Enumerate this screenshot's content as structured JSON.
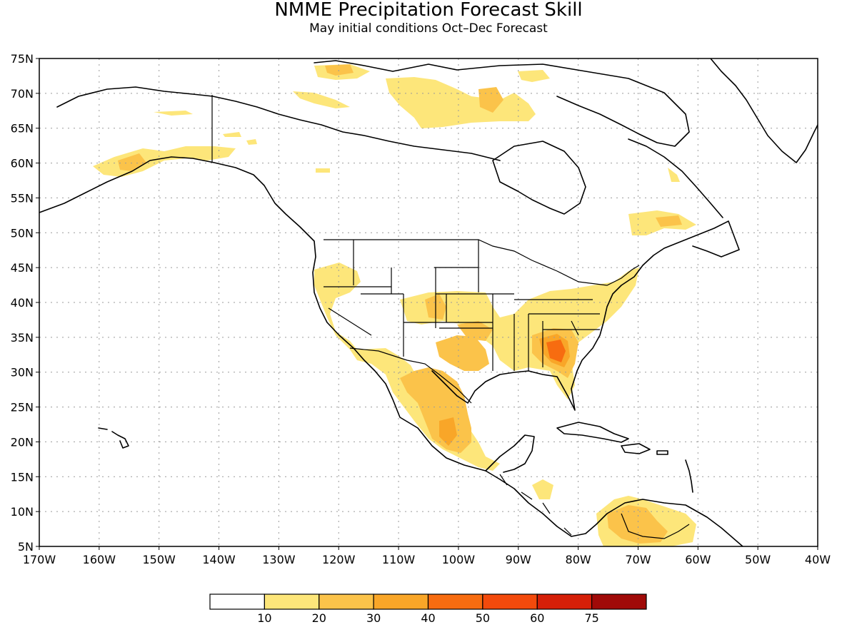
{
  "title": "NMME Precipitation Forecast Skill",
  "subtitle": "May initial conditions  Oct–Dec Forecast",
  "map": {
    "lon_range": [
      -170,
      -40
    ],
    "lat_range": [
      5,
      75
    ],
    "lat_ticks": [
      {
        "value": 75,
        "label": "75N"
      },
      {
        "value": 70,
        "label": "70N"
      },
      {
        "value": 65,
        "label": "65N"
      },
      {
        "value": 60,
        "label": "60N"
      },
      {
        "value": 55,
        "label": "55N"
      },
      {
        "value": 50,
        "label": "50N"
      },
      {
        "value": 45,
        "label": "45N"
      },
      {
        "value": 40,
        "label": "40N"
      },
      {
        "value": 35,
        "label": "35N"
      },
      {
        "value": 30,
        "label": "30N"
      },
      {
        "value": 25,
        "label": "25N"
      },
      {
        "value": 20,
        "label": "20N"
      },
      {
        "value": 15,
        "label": "15N"
      },
      {
        "value": 10,
        "label": "10N"
      },
      {
        "value": 5,
        "label": "5N"
      }
    ],
    "lon_ticks": [
      {
        "value": -170,
        "label": "170W"
      },
      {
        "value": -160,
        "label": "160W"
      },
      {
        "value": -150,
        "label": "150W"
      },
      {
        "value": -140,
        "label": "140W"
      },
      {
        "value": -130,
        "label": "130W"
      },
      {
        "value": -120,
        "label": "120W"
      },
      {
        "value": -110,
        "label": "110W"
      },
      {
        "value": -100,
        "label": "100W"
      },
      {
        "value": -90,
        "label": "90W"
      },
      {
        "value": -80,
        "label": "80W"
      },
      {
        "value": -70,
        "label": "70W"
      },
      {
        "value": -60,
        "label": "60W"
      },
      {
        "value": -50,
        "label": "50W"
      },
      {
        "value": -40,
        "label": "40W"
      }
    ],
    "grid": "dotted"
  },
  "colorbar": {
    "colors": [
      "#ffffff",
      "#fde67a",
      "#fbc34a",
      "#f9a628",
      "#f76c10",
      "#f34a0c",
      "#d51f08",
      "#a00a08"
    ],
    "labels": [
      "10",
      "20",
      "30",
      "40",
      "50",
      "60",
      "75"
    ]
  }
}
